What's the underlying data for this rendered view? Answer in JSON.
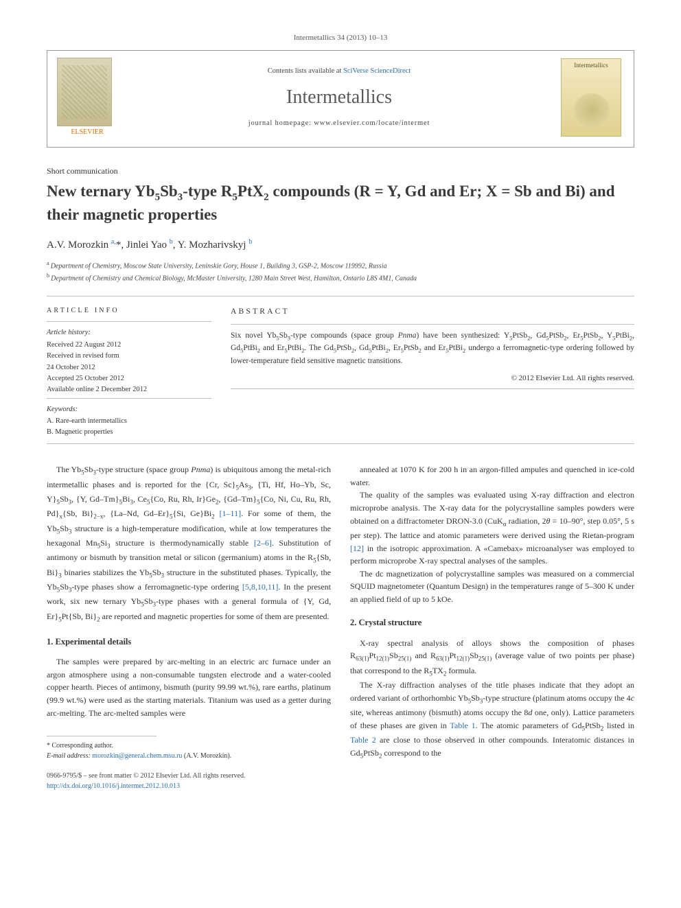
{
  "journal_ref": "Intermetallics 34 (2013) 10–13",
  "lists_prefix": "Contents lists available at ",
  "lists_link": "SciVerse ScienceDirect",
  "journal_name": "Intermetallics",
  "homepage_prefix": "journal homepage: ",
  "homepage_url": "www.elsevier.com/locate/intermet",
  "publisher_label": "ELSEVIER",
  "cover_label": "Intermetallics",
  "article_type": "Short communication",
  "title_html": "New ternary Yb<sub>5</sub>Sb<sub>3</sub>-type R<sub>5</sub>PtX<sub>2</sub> compounds (R = Y, Gd and Er; X = Sb and Bi) and their magnetic properties",
  "authors_html": "A.V. Morozkin <sup>a,</sup>*, Jinlei Yao <sup>b</sup>, Y. Mozharivskyj <sup>b</sup>",
  "affiliations": {
    "a": "Department of Chemistry, Moscow State University, Leninskie Gory, House 1, Building 3, GSP-2, Moscow 119992, Russia",
    "b": "Department of Chemistry and Chemical Biology, McMaster University, 1280 Main Street West, Hamilton, Ontario L8S 4M1, Canada"
  },
  "info_label": "ARTICLE INFO",
  "abstract_label": "ABSTRACT",
  "history": {
    "header": "Article history:",
    "received": "Received 22 August 2012",
    "revised1": "Received in revised form",
    "revised2": "24 October 2012",
    "accepted": "Accepted 25 October 2012",
    "online": "Available online 2 December 2012"
  },
  "keywords": {
    "header": "Keywords:",
    "k1": "A. Rare-earth intermetallics",
    "k2": "B. Magnetic properties"
  },
  "abstract_html": "Six novel Yb<sub>5</sub>Sb<sub>3</sub>-type compounds (space group <i>Pnma</i>) have been synthesized: Y<sub>5</sub>PtSb<sub>2</sub>, Gd<sub>5</sub>PtSb<sub>2</sub>, Er<sub>5</sub>PtSb<sub>2</sub>, Y<sub>5</sub>PtBi<sub>2</sub>, Gd<sub>5</sub>PtBi<sub>2</sub> and Er<sub>5</sub>PtBi<sub>2</sub>. The Gd<sub>5</sub>PtSb<sub>2</sub>, Gd<sub>5</sub>PtBi<sub>2</sub>, Er<sub>5</sub>PtSb<sub>2</sub> and Er<sub>5</sub>PtBi<sub>2</sub> undergo a ferromagnetic-type ordering followed by lower-temperature field sensitive magnetic transitions.",
  "copyright": "© 2012 Elsevier Ltd. All rights reserved.",
  "body": {
    "p1_html": "The Yb<sub>5</sub>Sb<sub>3</sub>-type structure (space group <i>Pnma</i>) is ubiquitous among the metal-rich intermetallic phases and is reported for the {Cr, Sc}<sub>5</sub>As<sub>3</sub>, {Ti, Hf, Ho–Yb, Sc, Y}<sub>5</sub>Sb<sub>3</sub>, {Y, Gd–Tm}<sub>5</sub>Bi<sub>3</sub>, Ce<sub>5</sub>{Co, Ru, Rh, Ir}Ge<sub>2</sub>, {Gd–Tm}<sub>5</sub>{Co, Ni, Cu, Ru, Rh, Pd}<sub>x</sub>{Sb, Bi}<sub>2−x</sub>, {La–Nd, Gd–Er}<sub>5</sub>{Si, Ge}Bi<sub>2</sub> <a>[1–11]</a>. For some of them, the Yb<sub>5</sub>Sb<sub>3</sub> structure is a high-temperature modification, while at low temperatures the hexagonal Mn<sub>5</sub>Si<sub>3</sub> structure is thermodynamically stable <a>[2–6]</a>. Substitution of antimony or bismuth by transition metal or silicon (germanium) atoms in the R<sub>5</sub>{Sb, Bi}<sub>3</sub> binaries stabilizes the Yb<sub>5</sub>Sb<sub>3</sub> structure in the substituted phases. Typically, the Yb<sub>5</sub>Sb<sub>3</sub>-type phases show a ferromagnetic-type ordering <a>[5,8,10,11]</a>. In the present work, six new ternary Yb<sub>5</sub>Sb<sub>3</sub>-type phases with a general formula of {Y, Gd, Er}<sub>5</sub>Pt{Sb, Bi}<sub>2</sub> are reported and magnetic properties for some of them are presented.",
    "h1": "1. Experimental details",
    "p2_html": "The samples were prepared by arc-melting in an electric arc furnace under an argon atmosphere using a non-consumable tungsten electrode and a water-cooled copper hearth. Pieces of antimony, bismuth (purity 99.99 wt.%), rare earths, platinum (99.9 wt.%) were used as the starting materials. Titanium was used as a getter during arc-melting. The arc-melted samples were",
    "p3_html": "annealed at 1070 K for 200 h in an argon-filled ampules and quenched in ice-cold water.",
    "p4_html": "The quality of the samples was evaluated using X-ray diffraction and electron microprobe analysis. The X-ray data for the polycrystalline samples powders were obtained on a diffractometer DRON-3.0 (CuK<sub>α</sub> radiation, 2<i>θ</i> = 10–90°, step 0.05°, 5 s per step). The lattice and atomic parameters were derived using the Rietan-program <a>[12]</a> in the isotropic approximation. A «Camebax» microanalyser was employed to perform microprobe X-ray spectral analyses of the samples.",
    "p5_html": "The dc magnetization of polycrystalline samples was measured on a commercial SQUID magnetometer (Quantum Design) in the temperatures range of 5–300 K under an applied field of up to 5 kOe.",
    "h2": "2. Crystal structure",
    "p6_html": "X-ray spectral analysis of alloys shows the composition of phases R<sub>63(1)</sub>Pt<sub>12(1)</sub>Sb<sub>25(1)</sub> and R<sub>63(1)</sub>Pt<sub>12(1)</sub>Sb<sub>25(1)</sub> (average value of two points per phase) that correspond to the R<sub>5</sub>TX<sub>2</sub> formula.",
    "p7_html": "The X-ray diffraction analyses of the title phases indicate that they adopt an ordered variant of orthorhombic Yb<sub>5</sub>Sb<sub>3</sub>-type structure (platinum atoms occupy the 4<i>c</i> site, whereas antimony (bismuth) atoms occupy the 8<i>d</i> one, only). Lattice parameters of these phases are given in <a>Table 1</a>. The atomic parameters of Gd<sub>5</sub>PtSb<sub>2</sub> listed in <a>Table 2</a> are close to those observed in other compounds. Interatomic distances in Gd<sub>5</sub>PtSb<sub>2</sub> correspond to the"
  },
  "footnote": {
    "star": "* Corresponding author.",
    "email_label": "E-mail address:",
    "email": "morozkin@general.chem.msu.ru",
    "email_suffix": "(A.V. Morozkin)."
  },
  "bottom": {
    "line1": "0966-9795/$ – see front matter © 2012 Elsevier Ltd. All rights reserved.",
    "doi": "http://dx.doi.org/10.1016/j.intermet.2012.10.013"
  },
  "colors": {
    "link": "#2a6db0",
    "text": "#333333",
    "rule": "#bfbfbf"
  }
}
